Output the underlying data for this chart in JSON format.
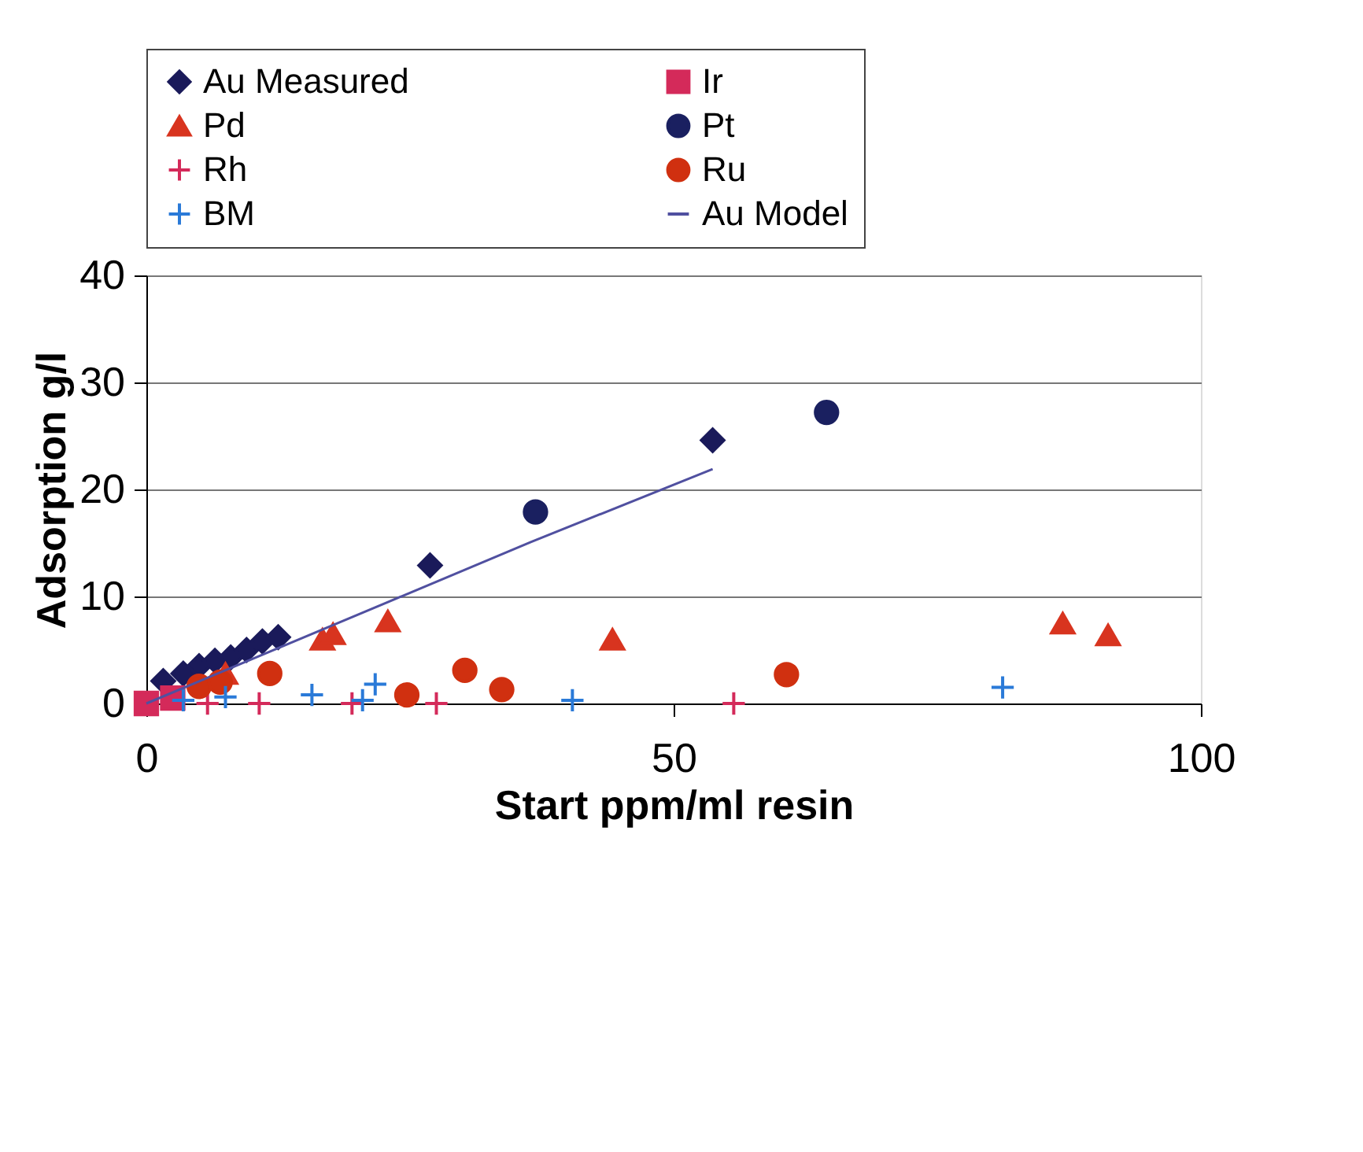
{
  "chart_data": {
    "type": "scatter",
    "xlabel": "Start ppm/ml resin",
    "ylabel": "Adsorption g/l",
    "xlim": [
      0,
      100
    ],
    "xticks": [
      0,
      50,
      100
    ],
    "ylim": [
      0,
      40
    ],
    "yticks": [
      0,
      10,
      20,
      30,
      40
    ],
    "grid": "y",
    "legend": "top",
    "series": [
      {
        "name": "Au Measured",
        "color": "#1a1a5a",
        "marker": "diamond",
        "x": [
          1.6,
          3.5,
          5,
          6.5,
          8,
          9.5,
          11,
          12.5,
          26.9,
          53.7
        ],
        "values": [
          2.1,
          2.8,
          3.5,
          4,
          4.3,
          5,
          5.8,
          6.2,
          12.9,
          24.6
        ]
      },
      {
        "name": "Ir",
        "color": "#d42a5a",
        "marker": "square",
        "x": [
          0,
          2.5
        ],
        "values": [
          0,
          0.5
        ]
      },
      {
        "name": "Pd",
        "color": "#d8341f",
        "marker": "triangle",
        "x": [
          7.5,
          16.7,
          17.7,
          22.9,
          44.2,
          86.9,
          91.2
        ],
        "values": [
          2.8,
          6.0,
          6.5,
          7.7,
          6.0,
          7.5,
          6.4
        ]
      },
      {
        "name": "Pt",
        "color": "#1a2060",
        "marker": "circle",
        "x": [
          36.9,
          64.5
        ],
        "values": [
          17.9,
          27.2
        ]
      },
      {
        "name": "Rh",
        "color": "#d42a5a",
        "marker": "cross",
        "x": [
          5.8,
          10.7,
          19.5,
          27.5,
          55.7
        ],
        "values": [
          0,
          0,
          0,
          0,
          0
        ]
      },
      {
        "name": "Ru",
        "color": "#d03010",
        "marker": "circle",
        "x": [
          5,
          7,
          11.7,
          24.7,
          30.2,
          33.7,
          60.7
        ],
        "values": [
          1.6,
          2,
          2.8,
          0.8,
          3.1,
          1.3,
          2.7
        ]
      },
      {
        "name": "BM",
        "color": "#2a7ad8",
        "marker": "cross",
        "x": [
          3.5,
          7.5,
          15.7,
          20.5,
          21.7,
          40.4,
          81.2
        ],
        "values": [
          0.3,
          0.6,
          0.8,
          0.3,
          1.8,
          0.3,
          1.5
        ]
      },
      {
        "name": "Au Model",
        "type": "line",
        "color": "#5050a0",
        "marker": "none",
        "x": [
          0,
          36.5,
          53.7
        ],
        "values": [
          0,
          15.1,
          21.9
        ]
      }
    ]
  }
}
